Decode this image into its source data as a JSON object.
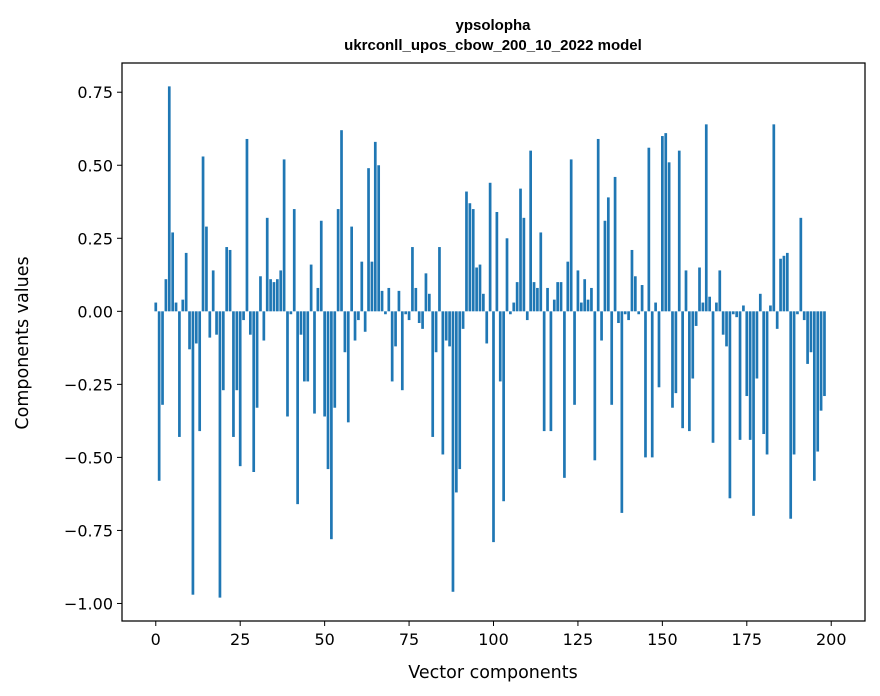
{
  "chart_data": {
    "type": "bar",
    "title": "ypsolopha",
    "subtitle": "ukrconll_upos_cbow_200_10_2022 model",
    "xlabel": "Vector components",
    "ylabel": "Components values",
    "xlim": [
      -10,
      210
    ],
    "ylim": [
      -1.06,
      0.85
    ],
    "xticks": [
      0,
      25,
      50,
      75,
      100,
      125,
      150,
      175,
      200
    ],
    "xtick_labels": [
      "0",
      "25",
      "50",
      "75",
      "100",
      "125",
      "150",
      "175",
      "200"
    ],
    "yticks": [
      -1.0,
      -0.75,
      -0.5,
      -0.25,
      0.0,
      0.25,
      0.5,
      0.75
    ],
    "ytick_labels": [
      "−1.00",
      "−0.75",
      "−0.50",
      "−0.25",
      "0.00",
      "0.25",
      "0.50",
      "0.75"
    ],
    "bar_color": "#1f77b4",
    "grid": false,
    "values": [
      0.03,
      -0.58,
      -0.32,
      0.11,
      0.77,
      0.27,
      0.03,
      -0.43,
      0.04,
      0.2,
      -0.13,
      -0.97,
      -0.11,
      -0.41,
      0.53,
      0.29,
      -0.09,
      0.14,
      -0.08,
      -0.98,
      -0.27,
      0.22,
      0.21,
      -0.43,
      -0.27,
      -0.53,
      -0.03,
      0.59,
      -0.08,
      -0.55,
      -0.33,
      0.12,
      -0.1,
      0.32,
      0.11,
      0.1,
      0.11,
      0.14,
      0.52,
      -0.36,
      -0.01,
      0.35,
      -0.66,
      -0.08,
      -0.24,
      -0.24,
      0.16,
      -0.35,
      0.08,
      0.31,
      -0.36,
      -0.54,
      -0.78,
      -0.33,
      0.35,
      0.62,
      -0.14,
      -0.38,
      0.29,
      -0.1,
      -0.03,
      0.17,
      -0.07,
      0.49,
      0.17,
      0.58,
      0.5,
      0.07,
      -0.01,
      0.08,
      -0.24,
      -0.12,
      0.07,
      -0.27,
      -0.01,
      -0.03,
      0.22,
      0.08,
      -0.04,
      -0.06,
      0.13,
      0.06,
      -0.43,
      -0.14,
      0.22,
      -0.49,
      -0.1,
      -0.12,
      -0.96,
      -0.62,
      -0.54,
      -0.06,
      0.41,
      0.37,
      0.35,
      0.15,
      0.16,
      0.06,
      -0.11,
      0.44,
      -0.79,
      0.34,
      -0.24,
      -0.65,
      0.25,
      -0.01,
      0.03,
      0.1,
      0.42,
      0.32,
      -0.03,
      0.55,
      0.1,
      0.08,
      0.27,
      -0.41,
      0.08,
      -0.41,
      0.04,
      0.1,
      0.1,
      -0.57,
      0.17,
      0.52,
      -0.32,
      0.14,
      0.03,
      0.11,
      0.04,
      0.08,
      -0.51,
      0.59,
      -0.1,
      0.31,
      0.39,
      -0.32,
      0.46,
      -0.04,
      -0.69,
      -0.01,
      -0.03,
      0.21,
      0.12,
      -0.01,
      0.09,
      -0.5,
      0.56,
      -0.5,
      0.03,
      -0.26,
      0.6,
      0.61,
      0.51,
      -0.33,
      -0.28,
      0.55,
      -0.4,
      0.14,
      -0.41,
      -0.23,
      -0.05,
      0.15,
      0.03,
      0.64,
      0.05,
      -0.45,
      0.03,
      0.14,
      -0.08,
      -0.12,
      -0.64,
      -0.01,
      -0.02,
      -0.44,
      0.02,
      -0.29,
      -0.44,
      -0.7,
      -0.23,
      0.06,
      -0.42,
      -0.49,
      0.02,
      0.64,
      -0.06,
      0.18,
      0.19,
      0.2,
      -0.71,
      -0.49,
      -0.01,
      0.32,
      -0.03,
      -0.18,
      -0.14,
      -0.58,
      -0.48,
      -0.34,
      -0.29
    ]
  }
}
